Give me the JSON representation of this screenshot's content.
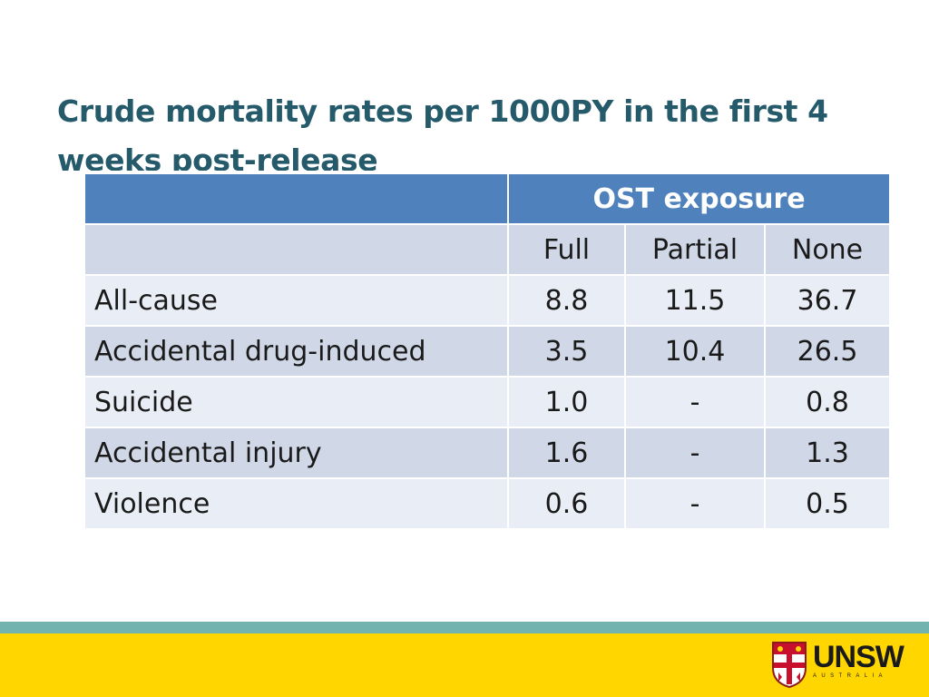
{
  "slide": {
    "title": "Crude mortality rates per 1000PY in the first 4 weeks post-release"
  },
  "table": {
    "group_header": "OST exposure",
    "columns": [
      "Full",
      "Partial",
      "None"
    ],
    "rows": [
      {
        "label": "All-cause",
        "values": [
          "8.8",
          "11.5",
          "36.7"
        ]
      },
      {
        "label": "Accidental drug-induced",
        "values": [
          "3.5",
          "10.4",
          "26.5"
        ]
      },
      {
        "label": "Suicide",
        "values": [
          "1.0",
          "-",
          "0.8"
        ]
      },
      {
        "label": "Accidental injury",
        "values": [
          "1.6",
          "-",
          "1.3"
        ]
      },
      {
        "label": "Violence",
        "values": [
          "0.6",
          "-",
          "0.5"
        ]
      }
    ]
  },
  "footer": {
    "logo": {
      "name": "UNSW",
      "subtitle": "AUSTRALIA",
      "icon": "unsw-crest-icon"
    },
    "colors": {
      "teal": "#72b3b0",
      "yellow": "#ffd600"
    }
  },
  "colors": {
    "title": "#255a6b",
    "header_fill": "#4f81bd",
    "row_light": "#e9edf5",
    "row_dark": "#d0d8e8"
  }
}
